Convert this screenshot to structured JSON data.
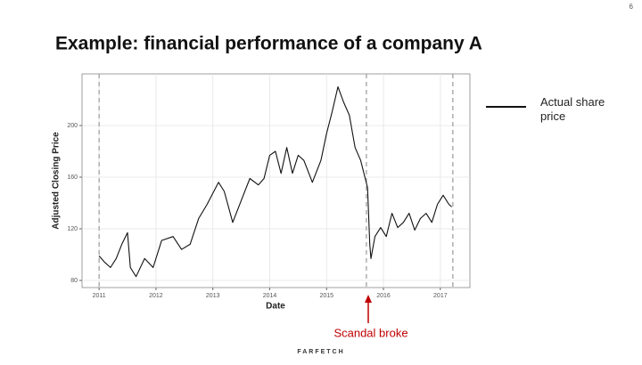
{
  "page_number": "6",
  "logo": "FARFETCH",
  "chart_data": {
    "type": "line",
    "title": "Example: financial performance of a company A",
    "x_label": "Date",
    "y_label": "Adjusted Closing Price",
    "x": [
      2011.0,
      2011.1,
      2011.2,
      2011.3,
      2011.4,
      2011.5,
      2011.55,
      2011.65,
      2011.8,
      2011.95,
      2012.1,
      2012.3,
      2012.45,
      2012.6,
      2012.75,
      2012.9,
      2013.1,
      2013.2,
      2013.35,
      2013.5,
      2013.65,
      2013.8,
      2013.9,
      2014.0,
      2014.1,
      2014.2,
      2014.3,
      2014.4,
      2014.5,
      2014.6,
      2014.75,
      2014.9,
      2015.0,
      2015.1,
      2015.2,
      2015.3,
      2015.4,
      2015.5,
      2015.6,
      2015.68,
      2015.72,
      2015.76,
      2015.78,
      2015.85,
      2015.95,
      2016.05,
      2016.15,
      2016.25,
      2016.35,
      2016.45,
      2016.55,
      2016.65,
      2016.75,
      2016.85,
      2016.95,
      2017.05,
      2017.15,
      2017.2
    ],
    "series": [
      {
        "name": "Actual share price",
        "color": "#111111",
        "values": [
          99,
          94,
          90,
          97,
          108,
          117,
          90,
          83,
          97,
          90,
          111,
          114,
          104,
          108,
          128,
          139,
          156,
          149,
          125,
          142,
          159,
          154,
          159,
          177,
          180,
          163,
          183,
          163,
          177,
          173,
          156,
          173,
          194,
          211,
          230,
          218,
          208,
          183,
          173,
          159,
          152,
          108,
          97,
          114,
          121,
          114,
          132,
          121,
          125,
          132,
          119,
          128,
          132,
          125,
          139,
          146,
          139,
          137
        ]
      }
    ],
    "vlines": [
      2011.0,
      2015.7,
      2017.22
    ],
    "annotation": "Scandal broke",
    "xlim": [
      2010.7,
      2017.52
    ],
    "xticks": [
      2011,
      2012,
      2013,
      2014,
      2015,
      2016,
      2017
    ],
    "ylim": [
      74.5,
      240
    ],
    "yticks": [
      80,
      120,
      160,
      200
    ],
    "grid": true
  }
}
